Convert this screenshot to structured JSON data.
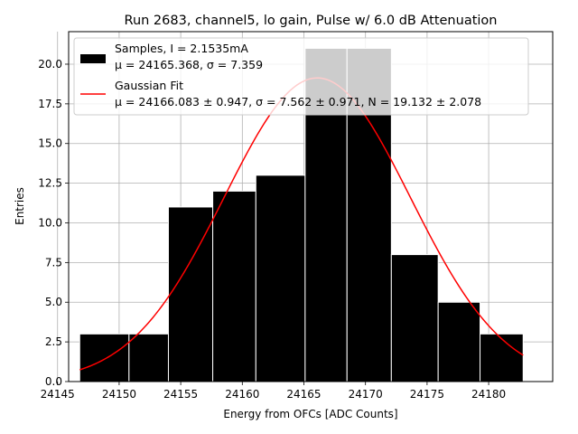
{
  "chart_data": {
    "type": "bar",
    "title": "Run 2683, channel5, lo gain, Pulse w/ 6.0 dB Attenuation",
    "xlabel": "Energy from OFCs [ADC Counts]",
    "ylabel": "Entries",
    "xlim": [
      24145.9,
      24185.2
    ],
    "ylim": [
      0,
      22.05
    ],
    "grid": true,
    "legend_position": "top-left",
    "x_ticks": [
      24145,
      24150,
      24155,
      24160,
      24165,
      24170,
      24175,
      24180
    ],
    "x_tick_labels": [
      "24145",
      "24150",
      "24155",
      "24160",
      "24165",
      "24170",
      "24175",
      "24180"
    ],
    "y_ticks": [
      0,
      2.5,
      5,
      7.5,
      10,
      12.5,
      15,
      17.5,
      20
    ],
    "y_tick_labels": [
      "0.0",
      "2.5",
      "5.0",
      "7.5",
      "10.0",
      "12.5",
      "15.0",
      "17.5",
      "20.0"
    ],
    "histogram": {
      "name": "Samples, I = 2.1535mA",
      "stats_label": "μ = 24165.368, σ = 7.359",
      "bin_edges": [
        24146.8,
        24150.8,
        24154.0,
        24157.6,
        24161.1,
        24165.1,
        24168.5,
        24172.1,
        24175.9,
        24179.3,
        24182.8
      ],
      "counts": [
        3,
        3,
        11,
        12,
        13,
        21,
        21,
        8,
        5,
        3
      ],
      "color": "#000000",
      "edge_color": "#ffffff"
    },
    "fit": {
      "name": "Gaussian Fit",
      "params_label": "μ = 24166.083 ± 0.947, σ = 7.562 ± 0.971, N = 19.132 ± 2.078",
      "mu": 24166.083,
      "sigma": 7.562,
      "peak": 19.132,
      "x_range": [
        24146.8,
        24182.8
      ],
      "color": "#ff0000"
    },
    "legend": {
      "samples_line1": "Samples, I = 2.1535mA",
      "samples_line2": "μ = 24165.368, σ = 7.359",
      "fit_line1": "Gaussian Fit",
      "fit_line2": "μ = 24166.083 ± 0.947, σ = 7.562 ± 0.971, N = 19.132 ± 2.078"
    }
  }
}
